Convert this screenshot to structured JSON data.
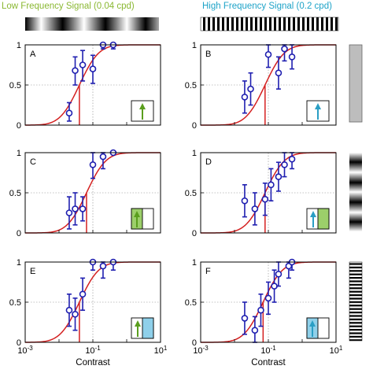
{
  "titles": {
    "left": "Low Frequency Signal (0.04 cpd)",
    "right": "High Frequency Signal (0.2 cpd)"
  },
  "colors": {
    "left_title": "#8ab832",
    "right_title": "#1ea3c8",
    "curve": "#d42020",
    "data": "#1f1fb0",
    "green_arrow": "#5a9e1e",
    "green_fill": "#9ccf6a",
    "blue_arrow": "#2a9ec4",
    "blue_fill": "#8fd0ea"
  },
  "chart_data": [
    {
      "type": "scatter",
      "panel": "A",
      "xlabel": "",
      "x_scale": "log",
      "xlim": [
        0.001,
        10
      ],
      "ylim": [
        0,
        1
      ],
      "threshold": 0.04,
      "icon": {
        "arrow": "green",
        "fill": "none"
      },
      "points": [
        {
          "x": 0.02,
          "y": 0.15,
          "lo": 0.05,
          "hi": 0.28
        },
        {
          "x": 0.03,
          "y": 0.68,
          "lo": 0.5,
          "hi": 0.85
        },
        {
          "x": 0.05,
          "y": 0.75,
          "lo": 0.55,
          "hi": 0.93
        },
        {
          "x": 0.1,
          "y": 0.7,
          "lo": 0.52,
          "hi": 0.87
        },
        {
          "x": 0.2,
          "y": 1.0,
          "lo": 0.95,
          "hi": 1.0
        },
        {
          "x": 0.4,
          "y": 1.0,
          "lo": 0.95,
          "hi": 1.0
        }
      ]
    },
    {
      "type": "scatter",
      "panel": "B",
      "xlabel": "",
      "x_scale": "log",
      "xlim": [
        0.001,
        10
      ],
      "ylim": [
        0,
        1
      ],
      "threshold": 0.08,
      "icon": {
        "arrow": "blue",
        "fill": "none"
      },
      "points": [
        {
          "x": 0.02,
          "y": 0.35,
          "lo": 0.15,
          "hi": 0.55
        },
        {
          "x": 0.03,
          "y": 0.45,
          "lo": 0.25,
          "hi": 0.65
        },
        {
          "x": 0.1,
          "y": 0.88,
          "lo": 0.72,
          "hi": 1.0
        },
        {
          "x": 0.2,
          "y": 0.65,
          "lo": 0.45,
          "hi": 0.85
        },
        {
          "x": 0.3,
          "y": 0.95,
          "lo": 0.8,
          "hi": 1.0
        },
        {
          "x": 0.5,
          "y": 0.85,
          "lo": 0.7,
          "hi": 1.0
        }
      ]
    },
    {
      "type": "scatter",
      "panel": "C",
      "xlabel": "",
      "x_scale": "log",
      "xlim": [
        0.001,
        10
      ],
      "ylim": [
        0,
        1
      ],
      "threshold": 0.065,
      "icon": {
        "arrow": "green",
        "fill": "green"
      },
      "points": [
        {
          "x": 0.02,
          "y": 0.25,
          "lo": 0.05,
          "hi": 0.45
        },
        {
          "x": 0.03,
          "y": 0.3,
          "lo": 0.1,
          "hi": 0.5
        },
        {
          "x": 0.05,
          "y": 0.3,
          "lo": 0.15,
          "hi": 0.45
        },
        {
          "x": 0.1,
          "y": 0.85,
          "lo": 0.68,
          "hi": 1.0
        },
        {
          "x": 0.2,
          "y": 0.95,
          "lo": 0.8,
          "hi": 1.0
        },
        {
          "x": 0.4,
          "y": 1.0,
          "lo": 1.0,
          "hi": 1.0
        }
      ]
    },
    {
      "type": "scatter",
      "panel": "D",
      "xlabel": "",
      "x_scale": "log",
      "xlim": [
        0.001,
        10
      ],
      "ylim": [
        0,
        1
      ],
      "threshold": 0.08,
      "icon": {
        "arrow": "blue",
        "fill": "green"
      },
      "points": [
        {
          "x": 0.02,
          "y": 0.4,
          "lo": 0.2,
          "hi": 0.6
        },
        {
          "x": 0.04,
          "y": 0.3,
          "lo": 0.1,
          "hi": 0.5
        },
        {
          "x": 0.08,
          "y": 0.42,
          "lo": 0.22,
          "hi": 0.62
        },
        {
          "x": 0.12,
          "y": 0.6,
          "lo": 0.4,
          "hi": 0.8
        },
        {
          "x": 0.2,
          "y": 0.7,
          "lo": 0.52,
          "hi": 0.88
        },
        {
          "x": 0.3,
          "y": 0.85,
          "lo": 0.7,
          "hi": 1.0
        },
        {
          "x": 0.5,
          "y": 0.92,
          "lo": 0.8,
          "hi": 1.0
        }
      ]
    },
    {
      "type": "scatter",
      "panel": "E",
      "xlabel": "Contrast",
      "x_scale": "log",
      "xlim": [
        0.001,
        10
      ],
      "ylim": [
        0,
        1
      ],
      "threshold": 0.04,
      "icon": {
        "arrow": "green",
        "fill": "blue"
      },
      "points": [
        {
          "x": 0.02,
          "y": 0.4,
          "lo": 0.2,
          "hi": 0.6
        },
        {
          "x": 0.03,
          "y": 0.35,
          "lo": 0.15,
          "hi": 0.55
        },
        {
          "x": 0.05,
          "y": 0.6,
          "lo": 0.4,
          "hi": 0.8
        },
        {
          "x": 0.1,
          "y": 1.0,
          "lo": 0.9,
          "hi": 1.0
        },
        {
          "x": 0.2,
          "y": 0.95,
          "lo": 0.8,
          "hi": 1.0
        },
        {
          "x": 0.4,
          "y": 1.0,
          "lo": 0.9,
          "hi": 1.0
        }
      ]
    },
    {
      "type": "scatter",
      "panel": "F",
      "xlabel": "Contrast",
      "x_scale": "log",
      "xlim": [
        0.001,
        10
      ],
      "ylim": [
        0,
        1
      ],
      "threshold": 0.07,
      "icon": {
        "arrow": "blue",
        "fill": "blue"
      },
      "points": [
        {
          "x": 0.02,
          "y": 0.3,
          "lo": 0.1,
          "hi": 0.5
        },
        {
          "x": 0.04,
          "y": 0.15,
          "lo": 0.0,
          "hi": 0.32
        },
        {
          "x": 0.06,
          "y": 0.4,
          "lo": 0.2,
          "hi": 0.6
        },
        {
          "x": 0.1,
          "y": 0.55,
          "lo": 0.35,
          "hi": 0.75
        },
        {
          "x": 0.15,
          "y": 0.7,
          "lo": 0.5,
          "hi": 0.9
        },
        {
          "x": 0.2,
          "y": 0.85,
          "lo": 0.7,
          "hi": 1.0
        },
        {
          "x": 0.4,
          "y": 0.95,
          "lo": 0.8,
          "hi": 1.0
        },
        {
          "x": 0.5,
          "y": 1.0,
          "lo": 0.9,
          "hi": 1.0
        }
      ]
    }
  ],
  "axis": {
    "y_ticks": [
      "0",
      "0.5",
      "1"
    ],
    "x_ticks": [
      {
        "base": "10",
        "exp": "-3"
      },
      {
        "base": "10",
        "exp": "-1"
      },
      {
        "base": "10",
        "exp": "1"
      }
    ]
  }
}
